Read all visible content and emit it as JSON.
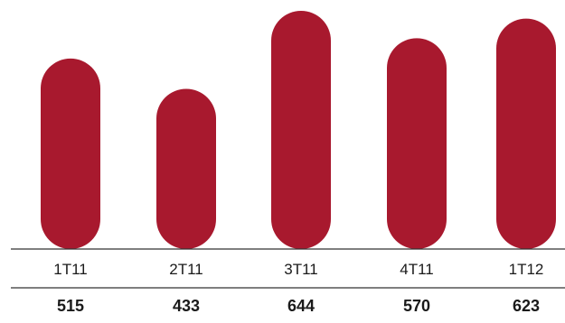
{
  "chart_data": {
    "type": "bar",
    "categories": [
      "1T11",
      "2T11",
      "3T11",
      "4T11",
      "1T12"
    ],
    "values": [
      515,
      433,
      644,
      570,
      623
    ],
    "bar_color": "#a8192e",
    "axis_color": "#333333"
  }
}
